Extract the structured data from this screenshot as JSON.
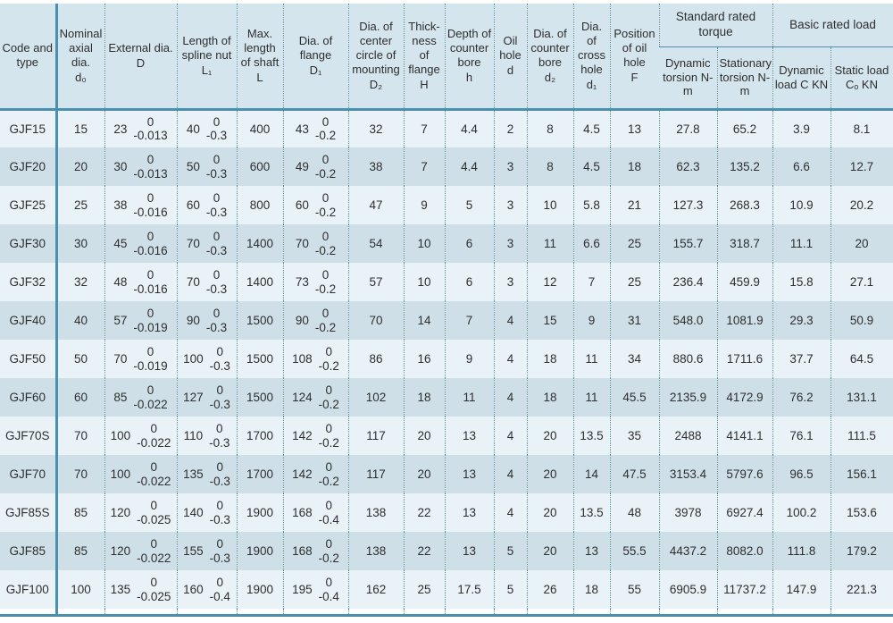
{
  "columns": {
    "code": {
      "text": "Code and type",
      "sym": ""
    },
    "d0": {
      "text": "Nominal axial dia.",
      "sym": "d₀"
    },
    "D": {
      "text": "External dia.",
      "sym": "D"
    },
    "L1": {
      "text": "Length of spline nut",
      "sym": "L₁"
    },
    "L": {
      "text": "Max. length of shaft",
      "sym": "L"
    },
    "D1": {
      "text": "Dia. of flange",
      "sym": "D₁"
    },
    "D2": {
      "text": "Dia. of center circle of mounting",
      "sym": "D₂"
    },
    "H": {
      "text": "Thick-ness of flange",
      "sym": "H"
    },
    "h": {
      "text": "Depth of counter bore",
      "sym": "h"
    },
    "d": {
      "text": "Oil hole",
      "sym": "d"
    },
    "d2": {
      "text": "Dia. of counter bore",
      "sym": "d₂"
    },
    "d1": {
      "text": "Dia. of cross hole",
      "sym": "d₁"
    },
    "F": {
      "text": "Position of oil hole",
      "sym": "F"
    }
  },
  "groups": {
    "torque": "Standard rated torque",
    "load": "Basic rated load"
  },
  "subcols": {
    "dyn_torsion": "Dynamic torsion N-m",
    "stat_torsion": "Stationary torsion N-m",
    "dyn_load": "Dynamic load C KN",
    "stat_load": "Static load Cₒ KN"
  },
  "row_order": [
    "code",
    "d0",
    "D",
    "L1",
    "L",
    "D1",
    "D2",
    "H",
    "h",
    "d",
    "d2",
    "d1",
    "F",
    "dyn_torsion",
    "stat_torsion",
    "dyn_load",
    "stat_load"
  ],
  "rows": [
    {
      "code": "GJF15",
      "d0": "15",
      "D": "23",
      "D_tol": [
        "0",
        "-0.013"
      ],
      "L1": "40",
      "L1_tol": [
        "0",
        "-0.3"
      ],
      "L": "400",
      "D1": "43",
      "D1_tol": [
        "0",
        "-0.2"
      ],
      "D2": "32",
      "H": "7",
      "h": "4.4",
      "d": "2",
      "d2": "8",
      "d1": "4.5",
      "F": "13",
      "dyn_torsion": "27.8",
      "stat_torsion": "65.2",
      "dyn_load": "3.9",
      "stat_load": "8.1"
    },
    {
      "code": "GJF20",
      "d0": "20",
      "D": "30",
      "D_tol": [
        "0",
        "-0.013"
      ],
      "L1": "50",
      "L1_tol": [
        "0",
        "-0.3"
      ],
      "L": "600",
      "D1": "49",
      "D1_tol": [
        "0",
        "-0.2"
      ],
      "D2": "38",
      "H": "7",
      "h": "4.4",
      "d": "3",
      "d2": "8",
      "d1": "4.5",
      "F": "18",
      "dyn_torsion": "62.3",
      "stat_torsion": "135.2",
      "dyn_load": "6.6",
      "stat_load": "12.7"
    },
    {
      "code": "GJF25",
      "d0": "25",
      "D": "38",
      "D_tol": [
        "0",
        "-0.016"
      ],
      "L1": "60",
      "L1_tol": [
        "0",
        "-0.3"
      ],
      "L": "800",
      "D1": "60",
      "D1_tol": [
        "0",
        "-0.2"
      ],
      "D2": "47",
      "H": "9",
      "h": "5",
      "d": "3",
      "d2": "10",
      "d1": "5.8",
      "F": "21",
      "dyn_torsion": "127.3",
      "stat_torsion": "268.3",
      "dyn_load": "10.9",
      "stat_load": "20.2"
    },
    {
      "code": "GJF30",
      "d0": "30",
      "D": "45",
      "D_tol": [
        "0",
        "-0.016"
      ],
      "L1": "70",
      "L1_tol": [
        "0",
        "-0.3"
      ],
      "L": "1400",
      "D1": "70",
      "D1_tol": [
        "0",
        "-0.2"
      ],
      "D2": "54",
      "H": "10",
      "h": "6",
      "d": "3",
      "d2": "11",
      "d1": "6.6",
      "F": "25",
      "dyn_torsion": "155.7",
      "stat_torsion": "318.7",
      "dyn_load": "11.1",
      "stat_load": "20"
    },
    {
      "code": "GJF32",
      "d0": "32",
      "D": "48",
      "D_tol": [
        "0",
        "-0.016"
      ],
      "L1": "70",
      "L1_tol": [
        "0",
        "-0.3"
      ],
      "L": "1400",
      "D1": "73",
      "D1_tol": [
        "0",
        "-0.2"
      ],
      "D2": "57",
      "H": "10",
      "h": "6",
      "d": "3",
      "d2": "12",
      "d1": "7",
      "F": "25",
      "dyn_torsion": "236.4",
      "stat_torsion": "459.9",
      "dyn_load": "15.8",
      "stat_load": "27.1"
    },
    {
      "code": "GJF40",
      "d0": "40",
      "D": "57",
      "D_tol": [
        "0",
        "-0.019"
      ],
      "L1": "90",
      "L1_tol": [
        "0",
        "-0.3"
      ],
      "L": "1500",
      "D1": "90",
      "D1_tol": [
        "0",
        "-0.2"
      ],
      "D2": "70",
      "H": "14",
      "h": "7",
      "d": "4",
      "d2": "15",
      "d1": "9",
      "F": "31",
      "dyn_torsion": "548.0",
      "stat_torsion": "1081.9",
      "dyn_load": "29.3",
      "stat_load": "50.9"
    },
    {
      "code": "GJF50",
      "d0": "50",
      "D": "70",
      "D_tol": [
        "0",
        "-0.019"
      ],
      "L1": "100",
      "L1_tol": [
        "0",
        "-0.3"
      ],
      "L": "1500",
      "D1": "108",
      "D1_tol": [
        "0",
        "-0.2"
      ],
      "D2": "86",
      "H": "16",
      "h": "9",
      "d": "4",
      "d2": "18",
      "d1": "11",
      "F": "34",
      "dyn_torsion": "880.6",
      "stat_torsion": "1711.6",
      "dyn_load": "37.7",
      "stat_load": "64.5"
    },
    {
      "code": "GJF60",
      "d0": "60",
      "D": "85",
      "D_tol": [
        "0",
        "-0.022"
      ],
      "L1": "127",
      "L1_tol": [
        "0",
        "-0.3"
      ],
      "L": "1500",
      "D1": "124",
      "D1_tol": [
        "0",
        "-0.2"
      ],
      "D2": "102",
      "H": "18",
      "h": "11",
      "d": "4",
      "d2": "18",
      "d1": "11",
      "F": "45.5",
      "dyn_torsion": "2135.9",
      "stat_torsion": "4172.9",
      "dyn_load": "76.2",
      "stat_load": "131.1"
    },
    {
      "code": "GJF70S",
      "d0": "70",
      "D": "100",
      "D_tol": [
        "0",
        "-0.022"
      ],
      "L1": "110",
      "L1_tol": [
        "0",
        "-0.3"
      ],
      "L": "1700",
      "D1": "142",
      "D1_tol": [
        "0",
        "-0.2"
      ],
      "D2": "117",
      "H": "20",
      "h": "13",
      "d": "4",
      "d2": "20",
      "d1": "13.5",
      "F": "35",
      "dyn_torsion": "2488",
      "stat_torsion": "4141.1",
      "dyn_load": "76.1",
      "stat_load": "111.5"
    },
    {
      "code": "GJF70",
      "d0": "70",
      "D": "100",
      "D_tol": [
        "0",
        "-0.022"
      ],
      "L1": "135",
      "L1_tol": [
        "0",
        "-0.3"
      ],
      "L": "1700",
      "D1": "142",
      "D1_tol": [
        "0",
        "-0.2"
      ],
      "D2": "117",
      "H": "20",
      "h": "13",
      "d": "4",
      "d2": "20",
      "d1": "14",
      "F": "47.5",
      "dyn_torsion": "3153.4",
      "stat_torsion": "5797.6",
      "dyn_load": "96.5",
      "stat_load": "156.1"
    },
    {
      "code": "GJF85S",
      "d0": "85",
      "D": "120",
      "D_tol": [
        "0",
        "-0.025"
      ],
      "L1": "140",
      "L1_tol": [
        "0",
        "-0.3"
      ],
      "L": "1900",
      "D1": "168",
      "D1_tol": [
        "0",
        "-0.4"
      ],
      "D2": "138",
      "H": "22",
      "h": "13",
      "d": "4",
      "d2": "20",
      "d1": "13.5",
      "F": "48",
      "dyn_torsion": "3978",
      "stat_torsion": "6927.4",
      "dyn_load": "100.2",
      "stat_load": "153.6"
    },
    {
      "code": "GJF85",
      "d0": "85",
      "D": "120",
      "D_tol": [
        "0",
        "-0.022"
      ],
      "L1": "155",
      "L1_tol": [
        "0",
        "-0.3"
      ],
      "L": "1900",
      "D1": "168",
      "D1_tol": [
        "0",
        "-0.2"
      ],
      "D2": "138",
      "H": "22",
      "h": "13",
      "d": "5",
      "d2": "20",
      "d1": "13",
      "F": "55.5",
      "dyn_torsion": "4437.2",
      "stat_torsion": "8082.0",
      "dyn_load": "111.8",
      "stat_load": "179.2"
    },
    {
      "code": "GJF100",
      "d0": "100",
      "D": "135",
      "D_tol": [
        "0",
        "-0.025"
      ],
      "L1": "160",
      "L1_tol": [
        "0",
        "-0.4"
      ],
      "L": "1900",
      "D1": "195",
      "D1_tol": [
        "0",
        "-0.4"
      ],
      "D2": "162",
      "H": "25",
      "h": "17.5",
      "d": "5",
      "d2": "26",
      "d1": "18",
      "F": "55",
      "dyn_torsion": "6905.9",
      "stat_torsion": "11737.2",
      "dyn_load": "147.9",
      "stat_load": "221.3"
    }
  ],
  "colors": {
    "teal_line": "#4a8fac",
    "header_bg": "#d5e5ed",
    "row_odd": "#e9f2f7",
    "row_even": "#cfdfe8"
  }
}
